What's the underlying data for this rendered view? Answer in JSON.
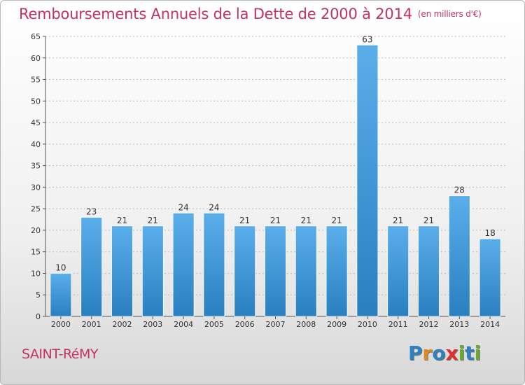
{
  "header": {
    "title": "Remboursements Annuels de la Dette de 2000 à 2014",
    "unit": "(en milliers d'€)"
  },
  "commune": "SAINT-RéMY",
  "logo": {
    "text": "Proxiti",
    "letters": [
      {
        "ch": "P",
        "color": "#2f7fc1"
      },
      {
        "ch": "r",
        "color": "#e08a1e"
      },
      {
        "ch": "o",
        "color": "#2f7fc1"
      },
      {
        "ch": "x",
        "color": "#e03030"
      },
      {
        "ch": "i",
        "color": "#6aa82f"
      },
      {
        "ch": "t",
        "color": "#2f7fc1"
      },
      {
        "ch": "i",
        "color": "#6aa82f"
      }
    ]
  },
  "colors": {
    "bar_light": "#5aaeea",
    "bar_dark": "#2a7fc0",
    "title": "#c2335f",
    "grid": "#bbbbbb"
  },
  "chart_data": {
    "type": "bar",
    "title": "Remboursements Annuels de la Dette de 2000 à 2014",
    "unit": "(en milliers d'€)",
    "categories": [
      "2000",
      "2001",
      "2002",
      "2003",
      "2004",
      "2005",
      "2006",
      "2007",
      "2008",
      "2009",
      "2010",
      "2011",
      "2012",
      "2013",
      "2014"
    ],
    "values": [
      10,
      23,
      21,
      21,
      24,
      24,
      21,
      21,
      21,
      21,
      63,
      21,
      21,
      28,
      18
    ],
    "ylim": [
      0,
      65
    ],
    "yticks": [
      0,
      5,
      10,
      15,
      20,
      25,
      30,
      35,
      40,
      45,
      50,
      55,
      60,
      65
    ],
    "grid": true,
    "data_labels": true
  }
}
